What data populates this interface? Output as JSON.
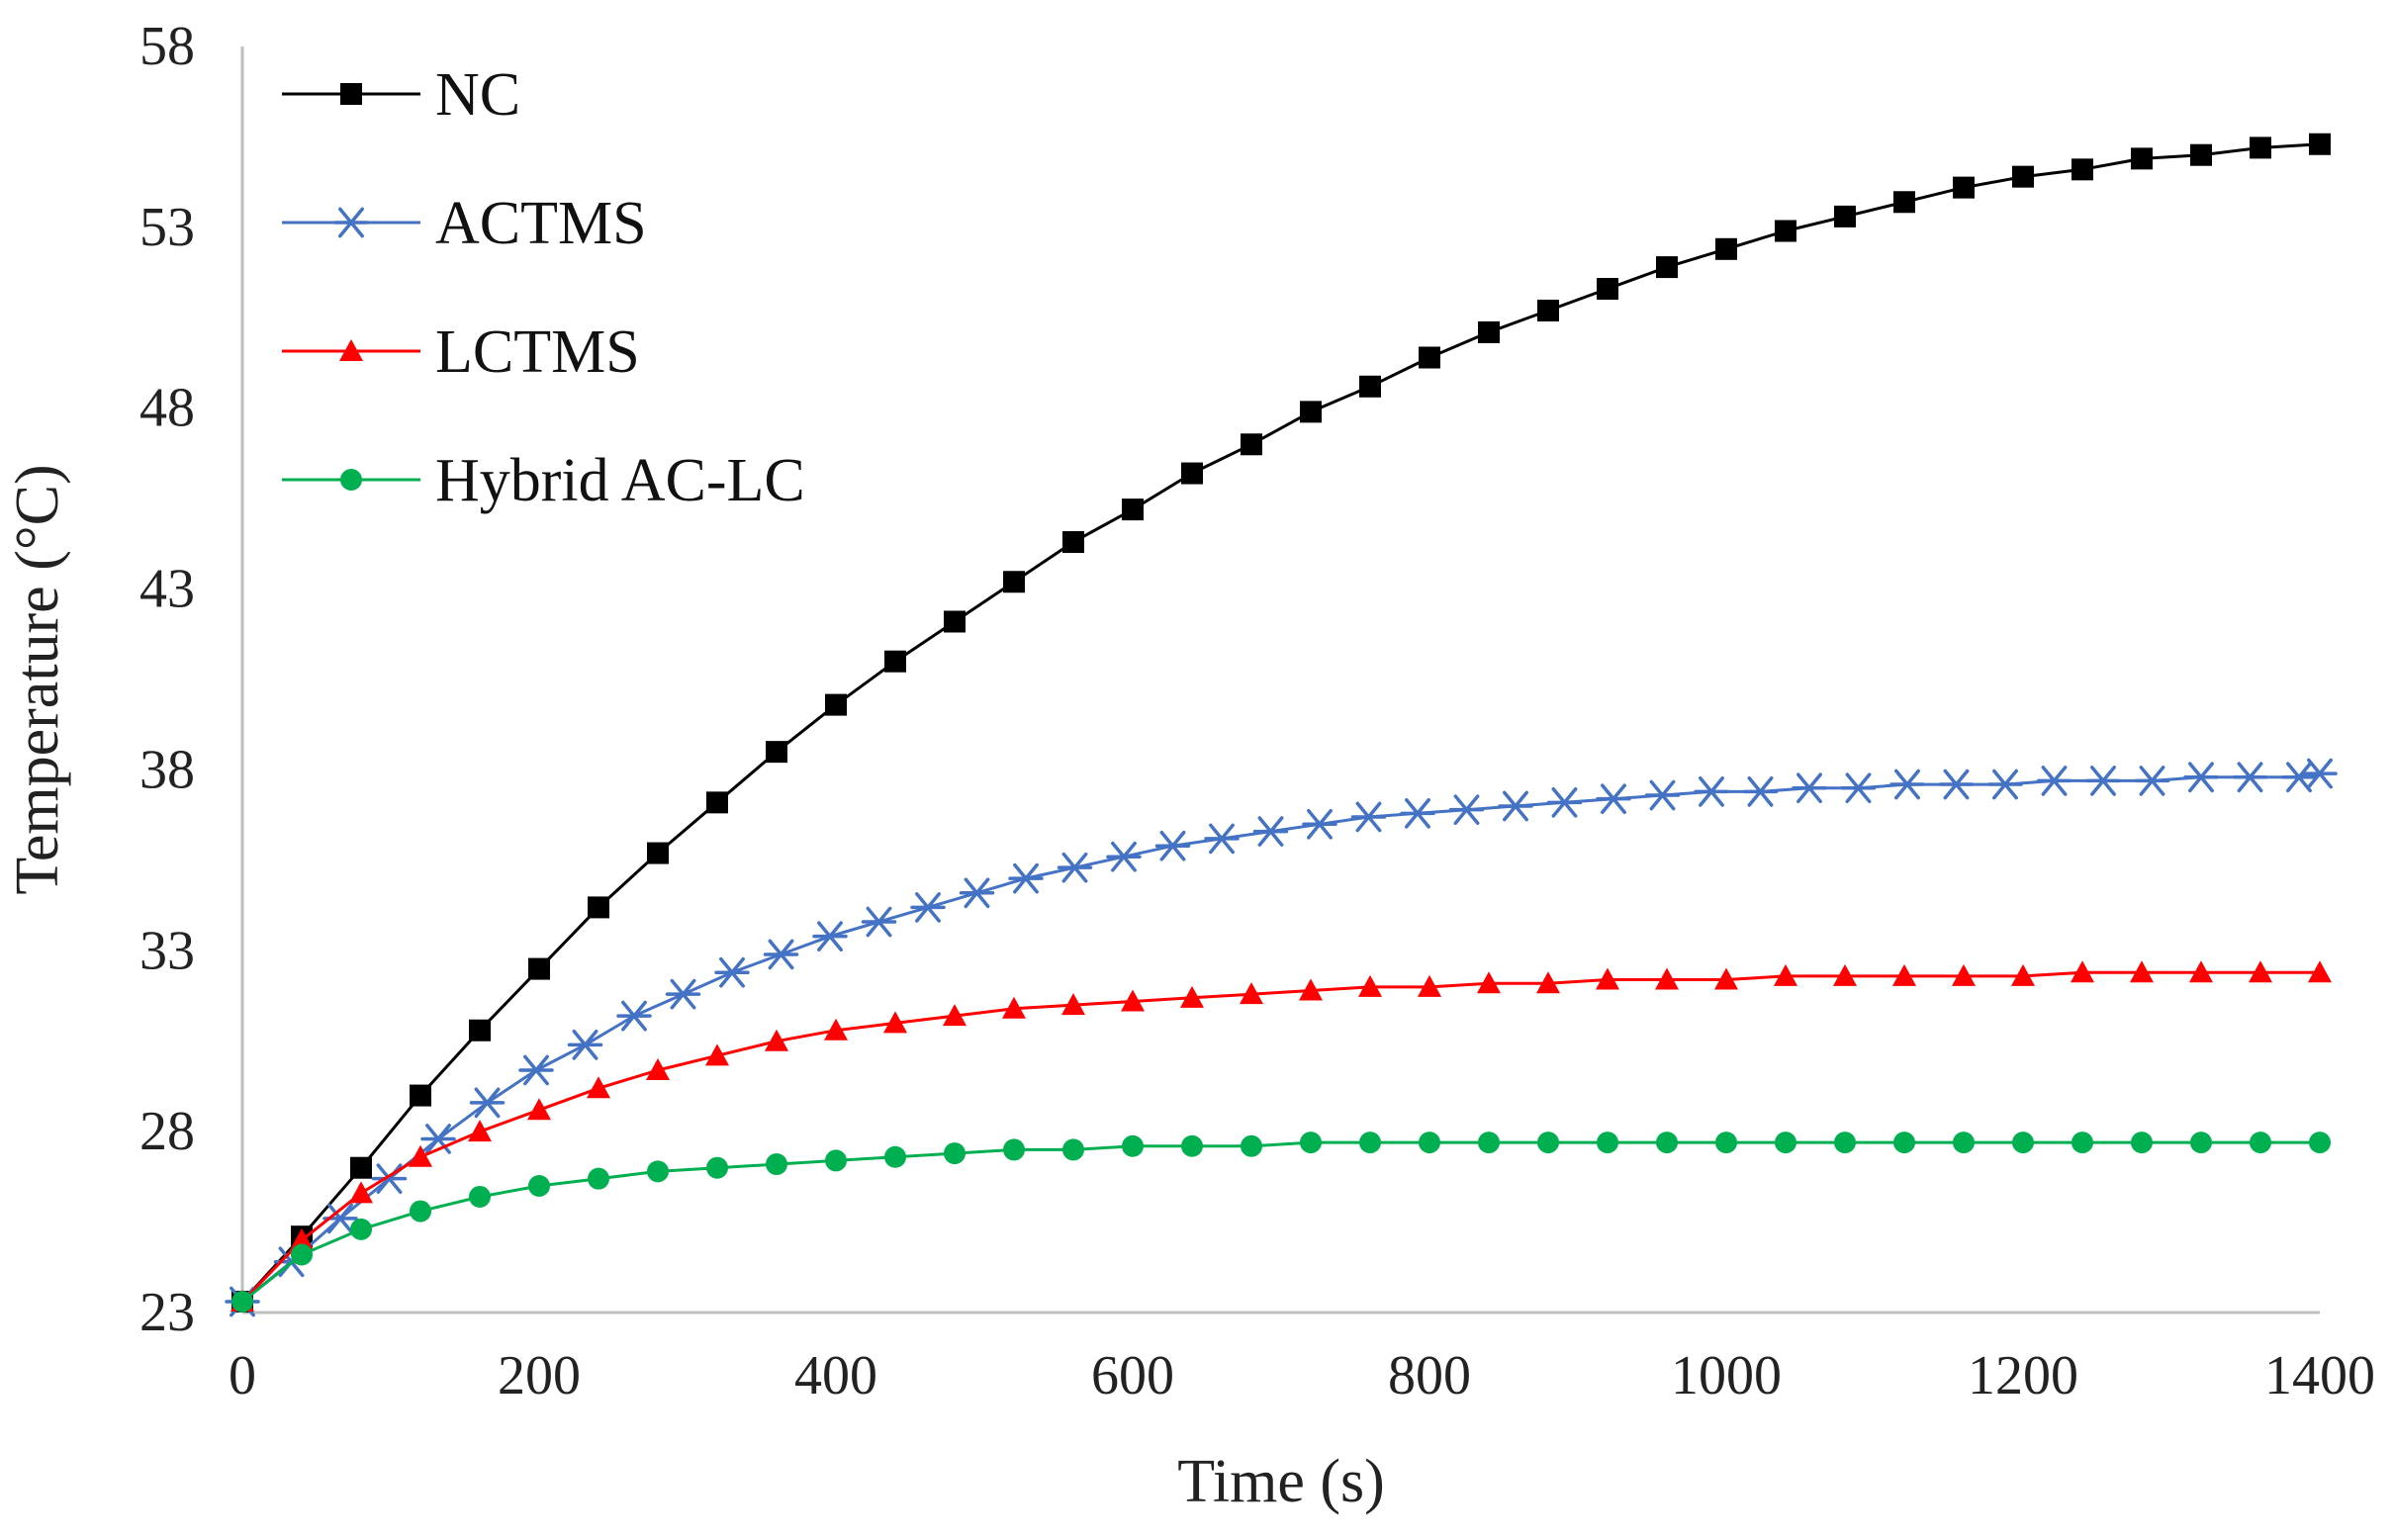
{
  "chart_data": {
    "type": "line",
    "title": "",
    "xlabel": "Time (s)",
    "ylabel": "Temperature (°C)",
    "xlim": [
      0,
      1400
    ],
    "ylim": [
      23,
      58
    ],
    "xticks": [
      0,
      200,
      400,
      600,
      800,
      1000,
      1200,
      1400
    ],
    "yticks": [
      23,
      28,
      33,
      38,
      43,
      48,
      53,
      58
    ],
    "xtick_labels": [
      "0",
      "200",
      "400",
      "600",
      "800",
      "1000",
      "1200",
      "1400"
    ],
    "ytick_labels": [
      "23",
      "28",
      "33",
      "38",
      "43",
      "48",
      "53",
      "58"
    ],
    "grid": false,
    "legend_position": "top-left",
    "series": [
      {
        "name": "NC",
        "color": "#000000",
        "marker": "square",
        "x": [
          0,
          40,
          80,
          120,
          160,
          200,
          240,
          280,
          320,
          360,
          400,
          440,
          480,
          520,
          560,
          600,
          640,
          680,
          720,
          760,
          800,
          840,
          880,
          920,
          960,
          1000,
          1040,
          1080,
          1120,
          1160,
          1200,
          1240,
          1280,
          1320,
          1360,
          1400
        ],
        "values": [
          23.3,
          25.1,
          27.0,
          29.0,
          30.8,
          32.5,
          34.2,
          35.7,
          37.1,
          38.5,
          39.8,
          41.0,
          42.1,
          43.2,
          44.3,
          45.2,
          46.2,
          47.0,
          47.9,
          48.6,
          49.4,
          50.1,
          50.7,
          51.3,
          51.9,
          52.4,
          52.9,
          53.3,
          53.7,
          54.1,
          54.4,
          54.6,
          54.9,
          55.0,
          55.2,
          55.3
        ]
      },
      {
        "name": "ACTMS",
        "color": "#4472c4",
        "marker": "asterisk",
        "x": [
          0,
          33,
          66,
          99,
          132,
          165,
          198,
          231,
          264,
          297,
          330,
          363,
          396,
          429,
          462,
          495,
          528,
          561,
          594,
          627,
          660,
          693,
          726,
          759,
          792,
          825,
          858,
          891,
          924,
          957,
          990,
          1023,
          1056,
          1089,
          1122,
          1155,
          1188,
          1221,
          1254,
          1287,
          1320,
          1353,
          1386,
          1400
        ],
        "values": [
          23.3,
          24.4,
          25.6,
          26.7,
          27.8,
          28.8,
          29.7,
          30.4,
          31.2,
          31.8,
          32.4,
          32.9,
          33.4,
          33.8,
          34.2,
          34.6,
          35.0,
          35.3,
          35.6,
          35.9,
          36.1,
          36.3,
          36.5,
          36.7,
          36.8,
          36.9,
          37.0,
          37.1,
          37.2,
          37.3,
          37.4,
          37.4,
          37.5,
          37.5,
          37.6,
          37.6,
          37.6,
          37.7,
          37.7,
          37.7,
          37.8,
          37.8,
          37.8,
          37.9
        ]
      },
      {
        "name": "LCTMS",
        "color": "#ff0000",
        "marker": "triangle",
        "x": [
          0,
          40,
          80,
          120,
          160,
          200,
          240,
          280,
          320,
          360,
          400,
          440,
          480,
          520,
          560,
          600,
          640,
          680,
          720,
          760,
          800,
          840,
          880,
          920,
          960,
          1000,
          1040,
          1080,
          1120,
          1160,
          1200,
          1240,
          1280,
          1320,
          1360,
          1400
        ],
        "values": [
          23.3,
          25.0,
          26.3,
          27.3,
          28.0,
          28.6,
          29.2,
          29.7,
          30.1,
          30.5,
          30.8,
          31.0,
          31.2,
          31.4,
          31.5,
          31.6,
          31.7,
          31.8,
          31.9,
          32.0,
          32.0,
          32.1,
          32.1,
          32.2,
          32.2,
          32.2,
          32.3,
          32.3,
          32.3,
          32.3,
          32.3,
          32.4,
          32.4,
          32.4,
          32.4,
          32.4
        ]
      },
      {
        "name": "Hybrid AC-LC",
        "color": "#00b050",
        "marker": "circle",
        "x": [
          0,
          40,
          80,
          120,
          160,
          200,
          240,
          280,
          320,
          360,
          400,
          440,
          480,
          520,
          560,
          600,
          640,
          680,
          720,
          760,
          800,
          840,
          880,
          920,
          960,
          1000,
          1040,
          1080,
          1120,
          1160,
          1200,
          1240,
          1280,
          1320,
          1360,
          1400
        ],
        "values": [
          23.3,
          24.6,
          25.3,
          25.8,
          26.2,
          26.5,
          26.7,
          26.9,
          27.0,
          27.1,
          27.2,
          27.3,
          27.4,
          27.5,
          27.5,
          27.6,
          27.6,
          27.6,
          27.7,
          27.7,
          27.7,
          27.7,
          27.7,
          27.7,
          27.7,
          27.7,
          27.7,
          27.7,
          27.7,
          27.7,
          27.7,
          27.7,
          27.7,
          27.7,
          27.7,
          27.7
        ]
      }
    ]
  }
}
